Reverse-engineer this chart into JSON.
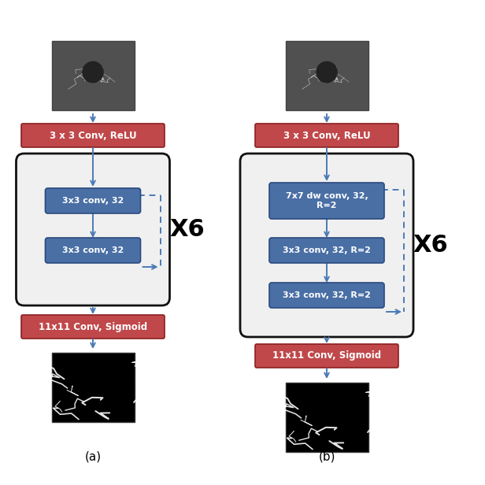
{
  "bg_color": "#ffffff",
  "red_box_color": "#c0484a",
  "red_box_edge": "#8b2020",
  "blue_box_color": "#4a6fa5",
  "blue_box_edge": "#2a4a80",
  "arrow_color": "#4a7ab5",
  "dashed_color": "#4a7ab5",
  "outer_box_fill": "#f0f0f0",
  "outer_box_edge": "#111111",
  "title_a": "(a)",
  "title_b": "(b)",
  "x6_label": "X6",
  "left": {
    "red_top_text": "3 x 3 Conv, ReLU",
    "red_bot_text": "11x11 Conv, Sigmoid",
    "blue_boxes": [
      "3x3 conv, 32",
      "3x3 conv, 32"
    ]
  },
  "right": {
    "red_top_text": "3 x 3 Conv, ReLU",
    "red_bot_text": "11x11 Conv, Sigmoid",
    "blue_boxes": [
      "7x7 dw conv, 32,\nR=2",
      "3x3 conv, 32, R=2",
      "3x3 conv, 32, R=2"
    ]
  }
}
